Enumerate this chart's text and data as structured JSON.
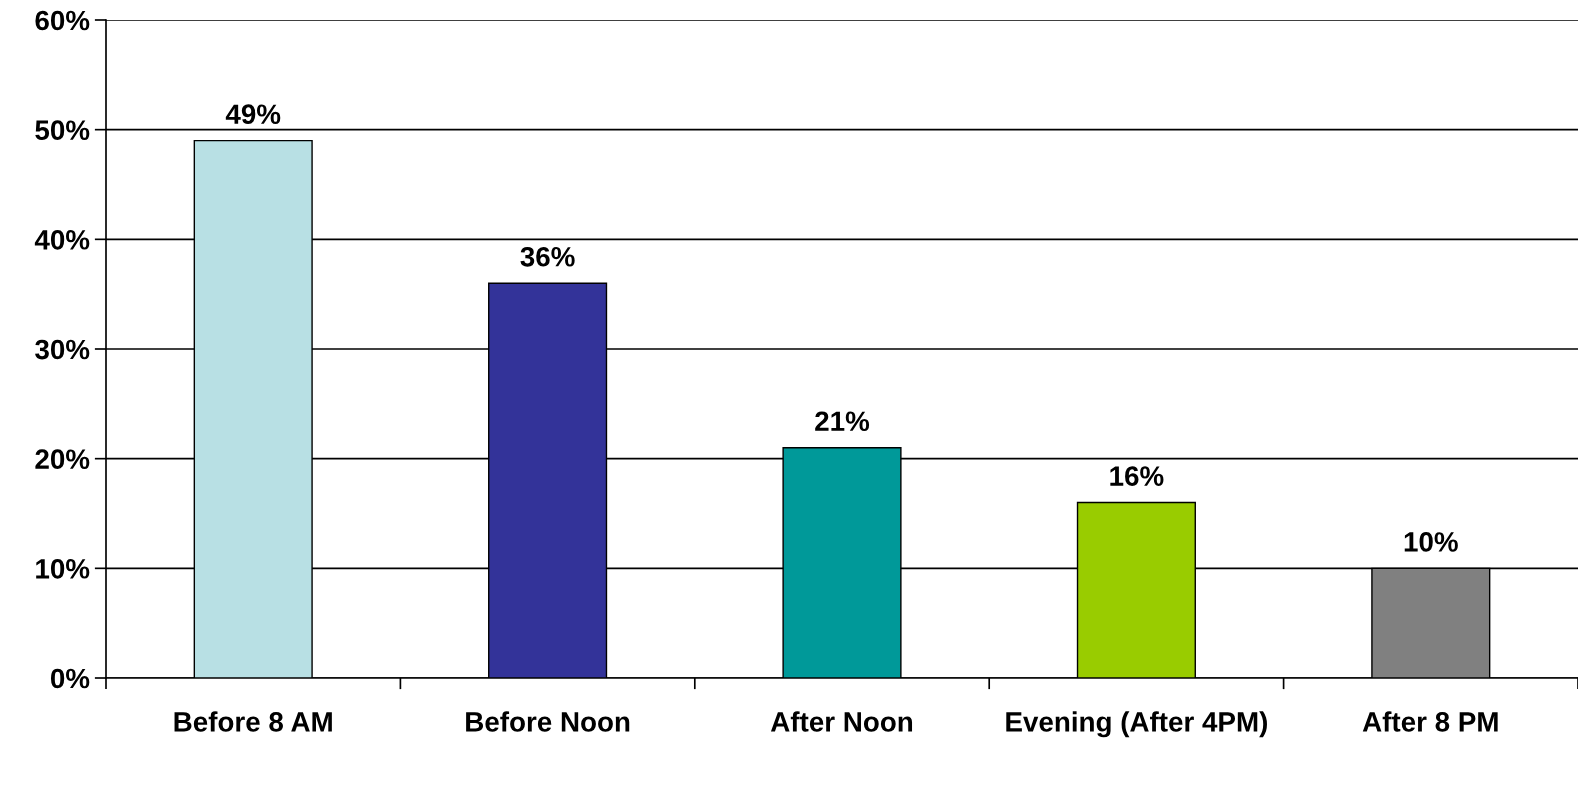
{
  "chart_data": {
    "type": "bar",
    "categories": [
      "Before 8 AM",
      "Before Noon",
      "After Noon",
      "Evening (After 4PM)",
      "After 8 PM"
    ],
    "values": [
      49,
      36,
      21,
      16,
      10
    ],
    "colors": [
      "#b8e0e4",
      "#333399",
      "#009999",
      "#99cc00",
      "#808080"
    ],
    "value_labels": [
      "49%",
      "36%",
      "21%",
      "16%",
      "10%"
    ],
    "ylim": [
      0,
      60
    ],
    "yticks": [
      {
        "value": 0,
        "label": "0%"
      },
      {
        "value": 10,
        "label": "10%"
      },
      {
        "value": 20,
        "label": "20%"
      },
      {
        "value": 30,
        "label": "30%"
      },
      {
        "value": 40,
        "label": "40%"
      },
      {
        "value": 50,
        "label": "50%"
      },
      {
        "value": 60,
        "label": "60%"
      }
    ],
    "grid": "y",
    "legend": false
  }
}
